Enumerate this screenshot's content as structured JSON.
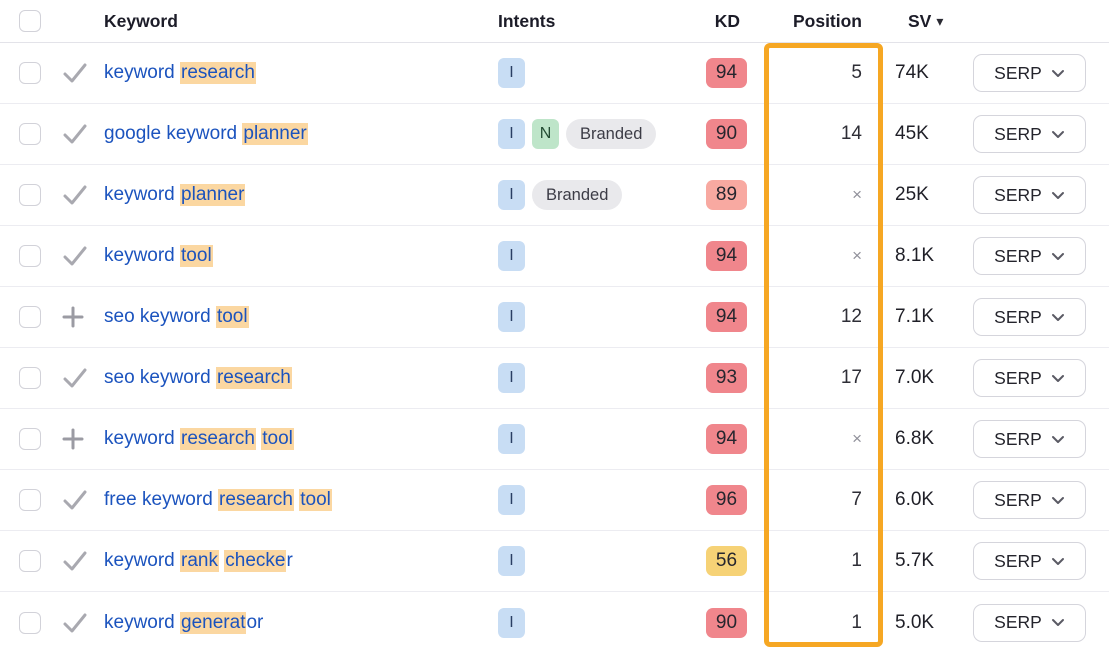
{
  "table": {
    "columns": {
      "keyword": "Keyword",
      "intents": "Intents",
      "kd": "KD",
      "position": "Position",
      "sv": "SV"
    },
    "serp_button_label": "SERP",
    "position_empty_symbol": "×",
    "sv_sort_arrow": "▾",
    "rows": [
      {
        "action": "check",
        "keyword_parts": [
          {
            "text": "keyword ",
            "highlighted": false
          },
          {
            "text": "research",
            "highlighted": true
          }
        ],
        "intents": [
          {
            "label": "I",
            "type": "i"
          }
        ],
        "kd": "94",
        "kd_level": "red",
        "position": "5",
        "sv": "74K"
      },
      {
        "action": "check",
        "keyword_parts": [
          {
            "text": "google keyword ",
            "highlighted": false
          },
          {
            "text": "planner",
            "highlighted": true
          }
        ],
        "intents": [
          {
            "label": "I",
            "type": "i"
          },
          {
            "label": "N",
            "type": "n"
          },
          {
            "label": "Branded",
            "type": "branded"
          }
        ],
        "kd": "90",
        "kd_level": "red",
        "position": "14",
        "sv": "45K"
      },
      {
        "action": "check",
        "keyword_parts": [
          {
            "text": "keyword ",
            "highlighted": false
          },
          {
            "text": "planner",
            "highlighted": true
          }
        ],
        "intents": [
          {
            "label": "I",
            "type": "i"
          },
          {
            "label": "Branded",
            "type": "branded"
          }
        ],
        "kd": "89",
        "kd_level": "light_red",
        "position": "×",
        "sv": "25K"
      },
      {
        "action": "check",
        "keyword_parts": [
          {
            "text": "keyword ",
            "highlighted": false
          },
          {
            "text": "tool",
            "highlighted": true
          }
        ],
        "intents": [
          {
            "label": "I",
            "type": "i"
          }
        ],
        "kd": "94",
        "kd_level": "red",
        "position": "×",
        "sv": "8.1K"
      },
      {
        "action": "plus",
        "keyword_parts": [
          {
            "text": "seo keyword ",
            "highlighted": false
          },
          {
            "text": "tool",
            "highlighted": true
          }
        ],
        "intents": [
          {
            "label": "I",
            "type": "i"
          }
        ],
        "kd": "94",
        "kd_level": "red",
        "position": "12",
        "sv": "7.1K"
      },
      {
        "action": "check",
        "keyword_parts": [
          {
            "text": "seo keyword ",
            "highlighted": false
          },
          {
            "text": "research",
            "highlighted": true
          }
        ],
        "intents": [
          {
            "label": "I",
            "type": "i"
          }
        ],
        "kd": "93",
        "kd_level": "red",
        "position": "17",
        "sv": "7.0K"
      },
      {
        "action": "plus",
        "keyword_parts": [
          {
            "text": "keyword ",
            "highlighted": false
          },
          {
            "text": "research",
            "highlighted": true
          },
          {
            "text": " ",
            "highlighted": false
          },
          {
            "text": "tool",
            "highlighted": true
          }
        ],
        "intents": [
          {
            "label": "I",
            "type": "i"
          }
        ],
        "kd": "94",
        "kd_level": "red",
        "position": "×",
        "sv": "6.8K"
      },
      {
        "action": "check",
        "keyword_parts": [
          {
            "text": "free keyword ",
            "highlighted": false
          },
          {
            "text": "research",
            "highlighted": true
          },
          {
            "text": " ",
            "highlighted": false
          },
          {
            "text": "tool",
            "highlighted": true
          }
        ],
        "intents": [
          {
            "label": "I",
            "type": "i"
          }
        ],
        "kd": "96",
        "kd_level": "red",
        "position": "7",
        "sv": "6.0K"
      },
      {
        "action": "check",
        "keyword_parts": [
          {
            "text": "keyword ",
            "highlighted": false
          },
          {
            "text": "rank",
            "highlighted": true
          },
          {
            "text": " ",
            "highlighted": false
          },
          {
            "text": "checke",
            "highlighted": true
          },
          {
            "text": "r",
            "highlighted": false
          }
        ],
        "intents": [
          {
            "label": "I",
            "type": "i"
          }
        ],
        "kd": "56",
        "kd_level": "yellow",
        "position": "1",
        "sv": "5.7K"
      },
      {
        "action": "check",
        "keyword_parts": [
          {
            "text": "keyword ",
            "highlighted": false
          },
          {
            "text": "generat",
            "highlighted": true
          },
          {
            "text": "or",
            "highlighted": false
          }
        ],
        "intents": [
          {
            "label": "I",
            "type": "i"
          }
        ],
        "kd": "90",
        "kd_level": "red",
        "position": "1",
        "sv": "5.0K"
      }
    ]
  },
  "colors": {
    "kd": {
      "red": "#f0868c",
      "light_red": "#f8a9a1",
      "yellow": "#f6d276"
    },
    "position_box": "#f6a723",
    "highlight": "#fbd7a1",
    "keyword_link": "#1b53be"
  }
}
